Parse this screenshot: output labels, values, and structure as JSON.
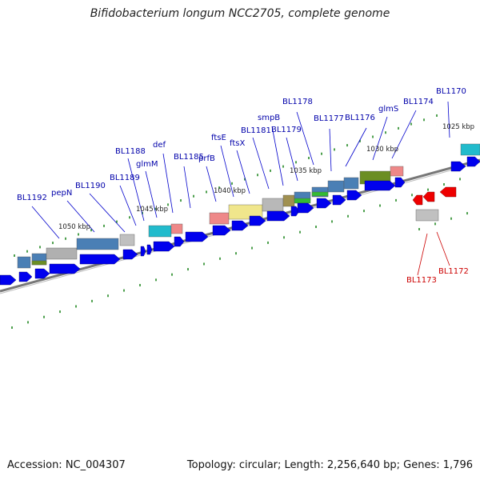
{
  "title": "Bifidobacterium longum NCC2705, complete genome",
  "footer": {
    "accession": "Accession: NC_004307",
    "summary": "Topology: circular; Length: 2,256,640 bp; Genes: 1,796"
  },
  "colors": {
    "forward_gene": "#0000ee",
    "reverse_gene": "#ee0000",
    "forward_label": "#0000aa",
    "reverse_label": "#cc0000",
    "backbone": "#777777",
    "tick": "#228822"
  },
  "ticks": [
    "1025 kbp",
    "1030 kbp",
    "1035 kbp",
    "1040 kbp",
    "1045 kbp",
    "1050 kbp"
  ],
  "gene_labels": {
    "forward": [
      "BL1170",
      "BL1174",
      "glmS",
      "BL1176",
      "BL1177",
      "BL1178",
      "BL1179",
      "smpB",
      "BL1181",
      "ftsX",
      "ftsE",
      "prfB",
      "BL1185",
      "def",
      "glmM",
      "BL1188",
      "BL1189",
      "BL1190",
      "pepN",
      "BL1192"
    ],
    "reverse": [
      "BL1172",
      "BL1173"
    ]
  }
}
